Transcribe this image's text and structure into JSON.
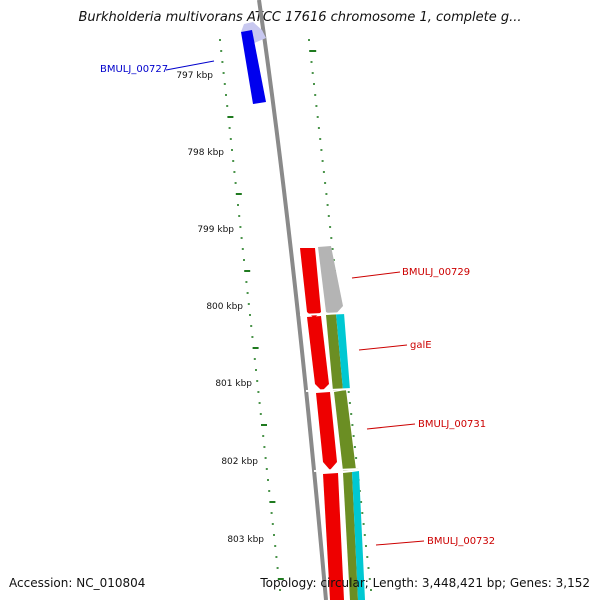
{
  "title": "Burkholderia multivorans ATCC 17616 chromosome 1, complete g...",
  "accession": "Accession: NC_010804",
  "summary": "Topology: circular; Length: 3,448,421 bp; Genes: 3,152",
  "colors": {
    "backbone": "#8a8a8a",
    "gene_blue": "#0000ee",
    "gene_blue_light": "#c8c8f0",
    "gene_red": "#ee0000",
    "gene_grey": "#b4b4b4",
    "gene_olive": "#6b8e23",
    "gene_cyan": "#00c8d2",
    "tick": "#1f7a1f",
    "label_blue": "#0000cc",
    "label_red": "#cc0000"
  },
  "ticks": [
    {
      "label": "797 kbp",
      "kbp": 797
    },
    {
      "label": "798 kbp",
      "kbp": 798
    },
    {
      "label": "799 kbp",
      "kbp": 799
    },
    {
      "label": "800 kbp",
      "kbp": 800
    },
    {
      "label": "801 kbp",
      "kbp": 801
    },
    {
      "label": "802 kbp",
      "kbp": 802
    },
    {
      "label": "803 kbp",
      "kbp": 803
    }
  ],
  "genes": [
    {
      "name": "BMULJ_00727",
      "color": "label_blue"
    },
    {
      "name": "BMULJ_00729",
      "color": "label_red"
    },
    {
      "name": "galE",
      "color": "label_red"
    },
    {
      "name": "BMULJ_00731",
      "color": "label_red"
    },
    {
      "name": "BMULJ_00732",
      "color": "label_red"
    }
  ]
}
